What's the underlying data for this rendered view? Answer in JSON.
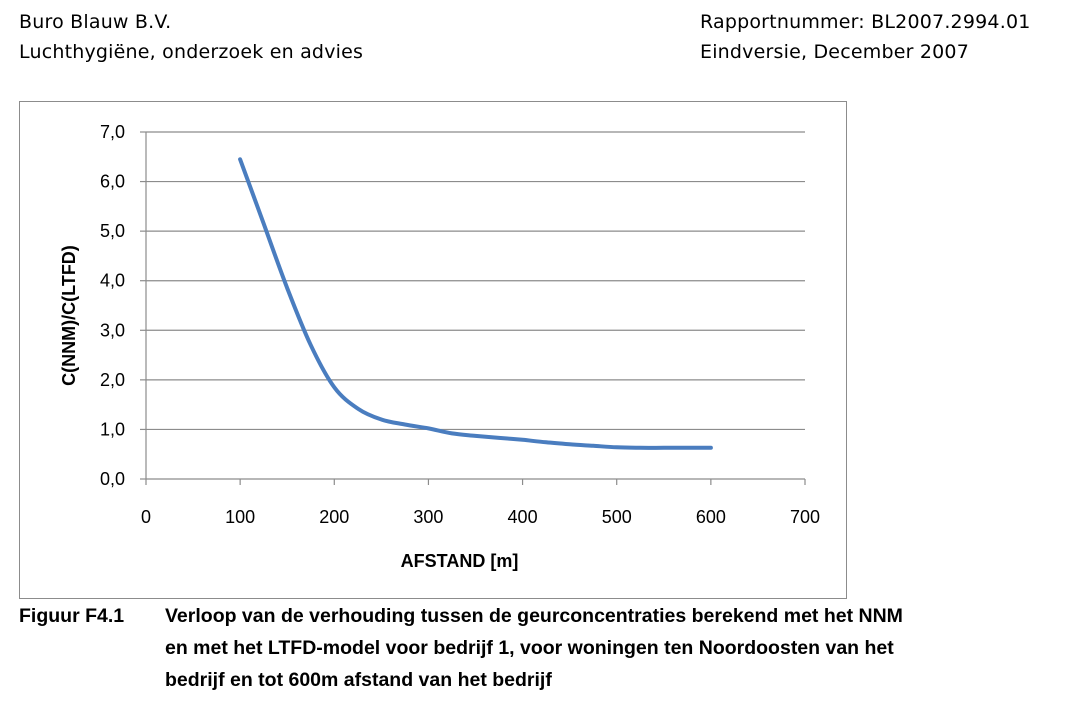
{
  "header": {
    "left": [
      "Buro Blauw B.V.",
      "Luchthygiëne, onderzoek en advies"
    ],
    "right": [
      "Rapportnummer: BL2007.2994.01",
      "Eindversie, December 2007"
    ]
  },
  "chart_data": {
    "type": "line",
    "title": "",
    "xlabel": "AFSTAND  [m]",
    "ylabel": "C(NNM)/C(LTFD)",
    "xlim": [
      0,
      700
    ],
    "ylim": [
      0,
      7
    ],
    "x_ticks": [
      "0",
      "100",
      "200",
      "300",
      "400",
      "500",
      "600",
      "700"
    ],
    "y_ticks": [
      "0,0",
      "1,0",
      "2,0",
      "3,0",
      "4,0",
      "5,0",
      "6,0",
      "7,0"
    ],
    "grid": "horizontal",
    "legend": "none",
    "series": [
      {
        "color": "#4a7dbf",
        "x": [
          100,
          125,
          150,
          175,
          200,
          225,
          250,
          275,
          300,
          325,
          350,
          375,
          400,
          425,
          450,
          475,
          500,
          525,
          550,
          575,
          600
        ],
        "y": [
          6.45,
          5.15,
          3.85,
          2.7,
          1.85,
          1.42,
          1.2,
          1.1,
          1.02,
          0.92,
          0.87,
          0.83,
          0.79,
          0.74,
          0.7,
          0.67,
          0.64,
          0.63,
          0.63,
          0.63,
          0.63
        ]
      }
    ]
  },
  "caption": {
    "label": "Figuur F4.1",
    "lines": [
      "Verloop van de verhouding tussen de geurconcentraties berekend met het NNM",
      "en met het LTFD-model voor bedrijf 1, voor woningen ten Noordoosten van het",
      "bedrijf en tot 600m afstand van het bedrijf"
    ]
  }
}
